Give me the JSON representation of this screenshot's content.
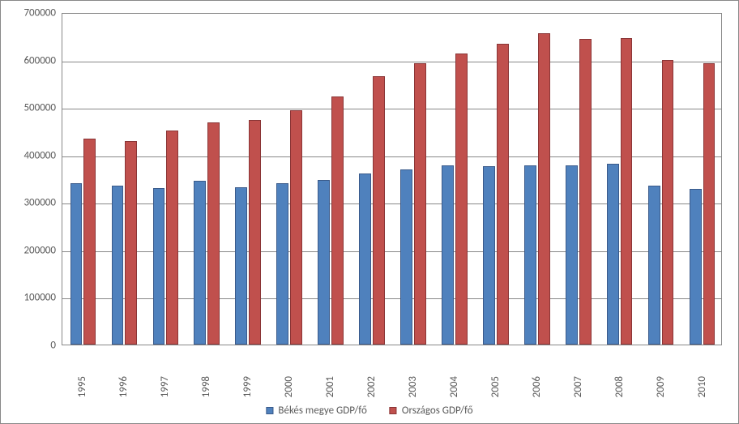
{
  "chart": {
    "type": "bar-grouped",
    "background_color": "#ffffff",
    "plot_border_color": "#888888",
    "grid_color": "#888888",
    "label_color": "#5a5a5a",
    "label_fontsize": 13,
    "ylim": [
      0,
      700000
    ],
    "ytick_step": 100000,
    "yticks": [
      0,
      100000,
      200000,
      300000,
      400000,
      500000,
      600000,
      700000
    ],
    "xticks_rotation": -90,
    "categories": [
      "1995",
      "1996",
      "1997",
      "1998",
      "1999",
      "2000",
      "2001",
      "2002",
      "2003",
      "2004",
      "2005",
      "2006",
      "2007",
      "2008",
      "2009",
      "2010"
    ],
    "series": [
      {
        "name": "Békés megye GDP/fő",
        "color": "#4f81bd",
        "border_color": "#3a5a8a",
        "values": [
          340000,
          335000,
          330000,
          345000,
          332000,
          340000,
          347000,
          360000,
          368000,
          378000,
          376000,
          378000,
          378000,
          380000,
          335000,
          327000
        ]
      },
      {
        "name": "Országos GDP/fő",
        "color": "#c0504d",
        "border_color": "#8a3536",
        "values": [
          434000,
          428000,
          450000,
          468000,
          473000,
          494000,
          523000,
          566000,
          593000,
          613000,
          634000,
          656000,
          643000,
          645000,
          600000,
          593000
        ]
      }
    ],
    "bar_cluster_width_ratio": 0.62,
    "bar_gap_within_cluster": 2
  }
}
